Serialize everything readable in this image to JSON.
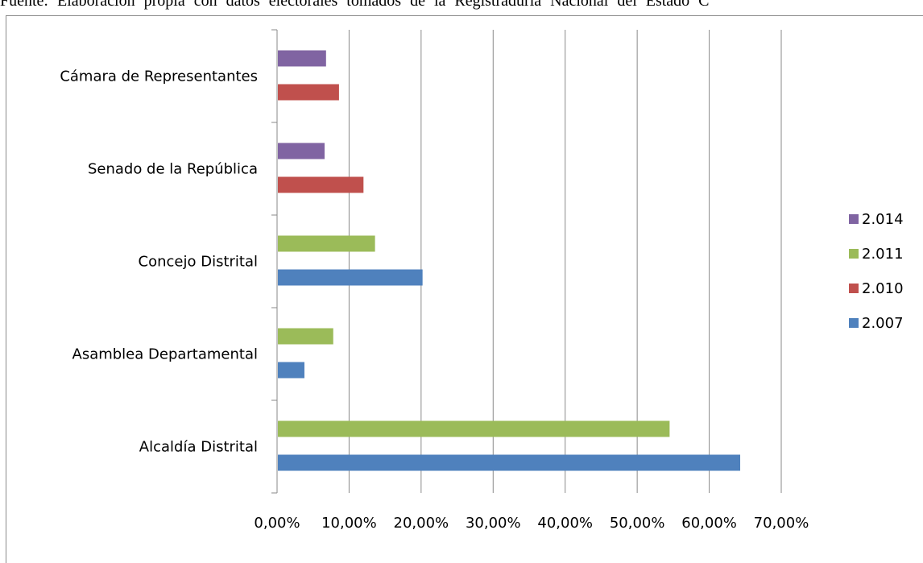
{
  "caption": "Fuente: Elaboración propia con datos electorales tomados de la Registraduría Nacional del Estado C",
  "chart_data": {
    "type": "bar",
    "orientation": "horizontal",
    "categories": [
      "Alcaldía Distrital",
      "Asamblea Departamental",
      "Concejo Distrital",
      "Senado de la República",
      "Cámara de Representantes"
    ],
    "series": [
      {
        "name": "2.007",
        "color": "#4f81bd",
        "values": [
          0.643,
          0.038,
          0.202,
          null,
          null
        ]
      },
      {
        "name": "2.010",
        "color": "#c0504d",
        "values": [
          null,
          null,
          null,
          0.12,
          0.086
        ]
      },
      {
        "name": "2.011",
        "color": "#9bbb59",
        "values": [
          0.545,
          0.078,
          0.136,
          null,
          null
        ]
      },
      {
        "name": "2.014",
        "color": "#8064a2",
        "values": [
          null,
          null,
          null,
          0.066,
          0.068
        ]
      }
    ],
    "xticks": [
      "0,00%",
      "10,00%",
      "20,00%",
      "30,00%",
      "40,00%",
      "50,00%",
      "60,00%",
      "70,00%"
    ],
    "xlim": [
      0,
      0.7
    ],
    "grid": true,
    "legend_position": "right",
    "legend_order": [
      "2.014",
      "2.011",
      "2.010",
      "2.007"
    ]
  }
}
